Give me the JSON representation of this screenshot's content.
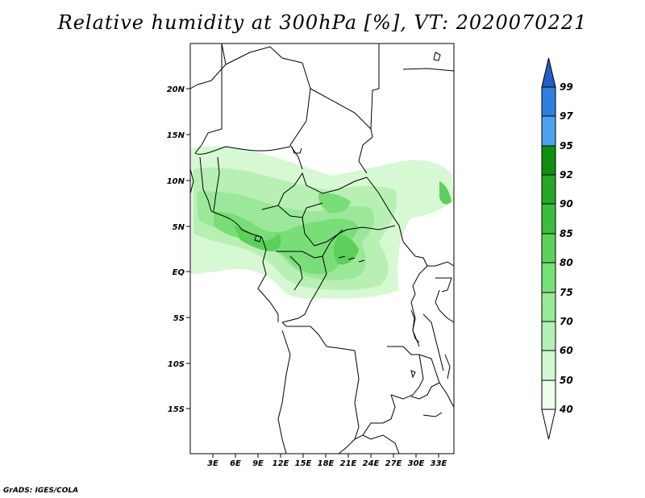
{
  "title": "Relative humidity at 300hPa [%], VT: 2020070221",
  "credit": "GrADS: IGES/COLA",
  "map": {
    "lat_ticks": [
      "20N",
      "15N",
      "10N",
      "5N",
      "EQ",
      "5S",
      "10S",
      "15S"
    ],
    "lon_ticks": [
      "3E",
      "6E",
      "9E",
      "12E",
      "15E",
      "18E",
      "21E",
      "24E",
      "27E",
      "30E",
      "33E"
    ]
  },
  "colorbar": {
    "labels": [
      "99",
      "97",
      "95",
      "92",
      "90",
      "85",
      "80",
      "75",
      "70",
      "60",
      "50",
      "40"
    ],
    "colors": [
      "#1f5fc6",
      "#2f7fe0",
      "#4fa0f0",
      "#0f8f0f",
      "#28a628",
      "#3cbc3c",
      "#5ad25a",
      "#78e078",
      "#98ea98",
      "#b4f0b4",
      "#d2f8d2",
      "#eefced"
    ]
  }
}
